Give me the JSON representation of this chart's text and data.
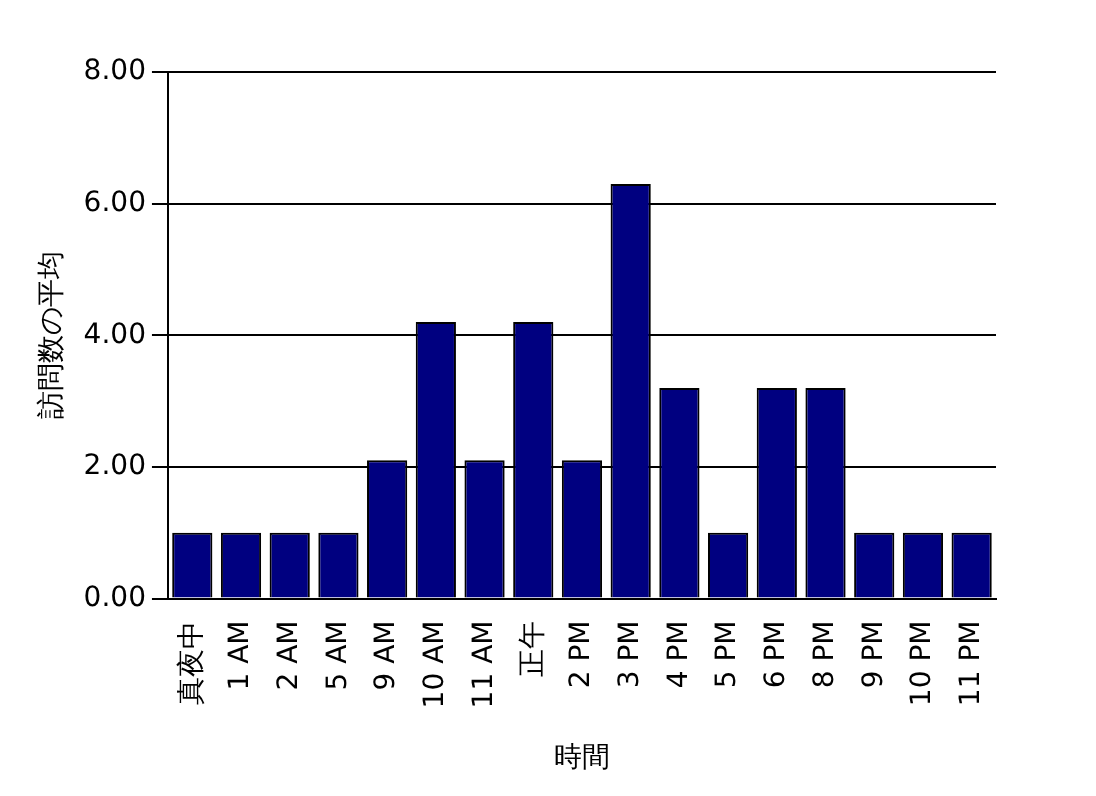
{
  "chart_data": {
    "type": "bar",
    "xlabel": "時間",
    "ylabel": "訪問数の平均",
    "categories": [
      "真夜中",
      "1 AM",
      "2 AM",
      "5 AM",
      "9 AM",
      "10 AM",
      "11 AM",
      "正午",
      "2 PM",
      "3 PM",
      "4 PM",
      "5 PM",
      "6 PM",
      "8 PM",
      "9 PM",
      "10 PM",
      "11 PM"
    ],
    "values": [
      1,
      1,
      1,
      1,
      2.1,
      4.2,
      2.1,
      4.2,
      2.1,
      6.3,
      3.2,
      1,
      3.2,
      3.2,
      1,
      1,
      1
    ],
    "color": "#000080",
    "ylim": [
      0,
      8
    ],
    "yticks": [
      {
        "value": 0,
        "label": "0.00"
      },
      {
        "value": 2,
        "label": "2.00"
      },
      {
        "value": 4,
        "label": "4.00"
      },
      {
        "value": 6,
        "label": "6.00"
      },
      {
        "value": 8,
        "label": "8.00"
      }
    ],
    "grid": "y",
    "legend": false
  }
}
